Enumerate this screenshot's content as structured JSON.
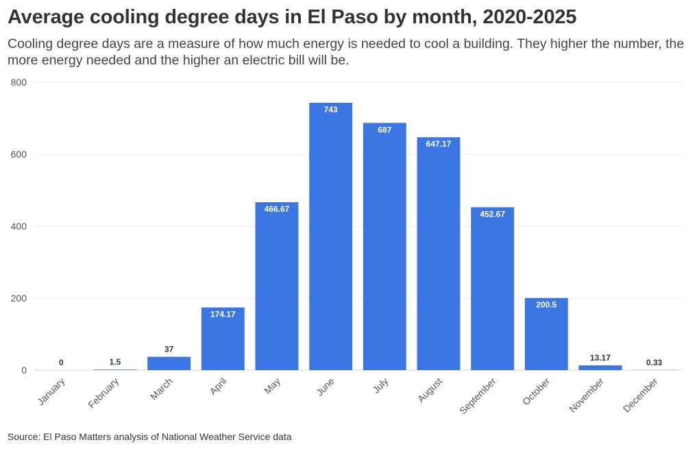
{
  "chart_data": {
    "type": "bar",
    "title": "Average cooling degree days in El Paso by month, 2020-2025",
    "subtitle": "Cooling degree days are a measure of how much energy is needed to cool a building. They higher the number, the more energy needed and the higher an electric bill will be.",
    "source": "Source: El Paso Matters analysis of National Weather Service data",
    "categories": [
      "January",
      "February",
      "March",
      "April",
      "May",
      "June",
      "July",
      "August",
      "September",
      "October",
      "November",
      "December"
    ],
    "values": [
      0,
      1.5,
      37,
      174.17,
      466.67,
      743,
      687,
      647.17,
      452.67,
      200.5,
      13.17,
      0.33
    ],
    "value_labels": [
      "0",
      "1.5",
      "37",
      "174.17",
      "466.67",
      "743",
      "687",
      "647.17",
      "452.67",
      "200.5",
      "13.17",
      "0.33"
    ],
    "yticks": [
      "0",
      "200",
      "400",
      "600",
      "800"
    ],
    "ylim": [
      0,
      800
    ],
    "xlabel": "",
    "ylabel": "",
    "grid": true,
    "bar_color": "#3b76e3"
  }
}
